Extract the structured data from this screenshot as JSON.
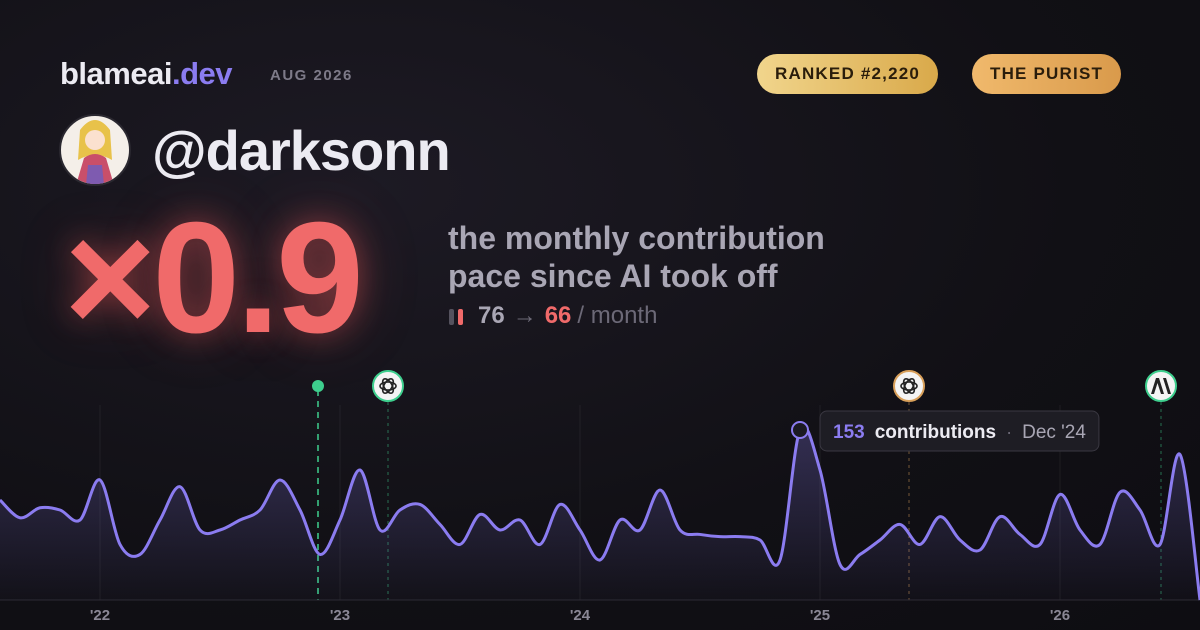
{
  "header": {
    "brand": "blameai",
    "brand_suffix": ".dev",
    "period": "AUG 2026",
    "badges": [
      "RANKED #2,220",
      "THE PURIST"
    ]
  },
  "profile": {
    "handle": "@darksonn"
  },
  "headline": {
    "multiplier": "×0.9",
    "caption_line1": "the monthly contribution",
    "caption_line2": "pace since AI took off",
    "before": "76",
    "arrow": "→",
    "after": "66",
    "unit": "/ month"
  },
  "chart_data": {
    "type": "line",
    "categories": [
      null,
      null,
      null,
      null,
      null,
      "'22",
      null,
      null,
      null,
      null,
      null,
      null,
      null,
      null,
      null,
      null,
      null,
      "'23",
      null,
      null,
      null,
      null,
      null,
      null,
      null,
      null,
      null,
      null,
      null,
      "'24",
      null,
      null,
      null,
      null,
      null,
      null,
      null,
      null,
      null,
      null,
      null,
      "'25",
      null,
      null,
      null,
      null,
      null,
      null,
      null,
      null,
      null,
      null,
      null,
      "'26",
      null,
      null,
      null,
      null,
      null,
      null,
      null
    ],
    "values": [
      90,
      74,
      83,
      81,
      72,
      108,
      50,
      41,
      72,
      102,
      63,
      63,
      72,
      81,
      108,
      81,
      41,
      72,
      117,
      63,
      81,
      86,
      68,
      50,
      77,
      63,
      72,
      50,
      86,
      63,
      36,
      72,
      63,
      99,
      63,
      59,
      57,
      57,
      54,
      36,
      153,
      117,
      32,
      41,
      54,
      68,
      50,
      75,
      54,
      45,
      75,
      59,
      50,
      95,
      63,
      50,
      97,
      81,
      50,
      131,
      0
    ],
    "color": "#8b7cf0",
    "ylim": [
      0,
      180
    ],
    "tooltip": {
      "index": 40,
      "label": "contributions",
      "separator": "·",
      "date": "Dec '24"
    }
  }
}
